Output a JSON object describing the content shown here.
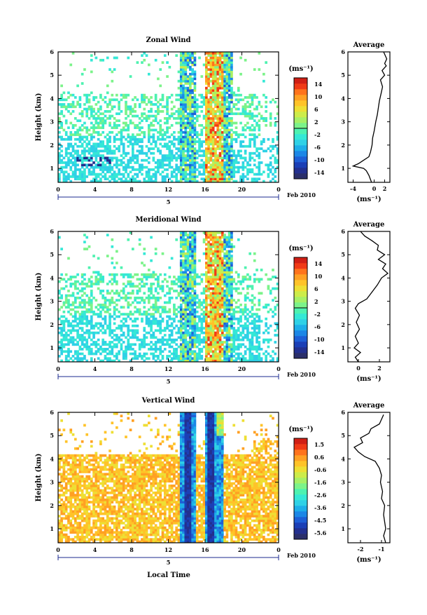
{
  "page": {
    "x_axis_title": "Local Time",
    "date_label": "Feb 2010",
    "day_label": "5",
    "average_title": "Average",
    "y_axis_title": "Height (km)",
    "cbar_unit": "(ms⁻¹)",
    "avg_unit": "(ms⁻¹)"
  },
  "colors": {
    "jet": [
      "#2b2f6a",
      "#23308f",
      "#1b3fb6",
      "#1e5fd6",
      "#1c87e6",
      "#1eaee9",
      "#2fd1e6",
      "#35e8d6",
      "#4ef2b0",
      "#7cf38a",
      "#a7f066",
      "#cdec4a",
      "#eedf34",
      "#ffc329",
      "#ffa023",
      "#ff731c",
      "#f03a16",
      "#d01f15"
    ]
  },
  "chart_data": [
    {
      "type": "heatmap",
      "title": "Zonal Wind",
      "ylabel": "Height (km)",
      "xlabel": "",
      "x_ticks": [
        "0",
        "4",
        "8",
        "12",
        "16",
        "20",
        "0"
      ],
      "x_range": [
        0,
        24
      ],
      "y_ticks": [
        "1",
        "2",
        "3",
        "4",
        "5",
        "6"
      ],
      "y_range": [
        0.4,
        6
      ],
      "colorbar": {
        "label": "(ms⁻¹)",
        "min": -16,
        "max": 16,
        "ticks": [
          "14",
          "10",
          "6",
          "2",
          "-2",
          "-6",
          "-10",
          "-14"
        ]
      },
      "date": "Feb 2010",
      "day": "5",
      "profile": {
        "title": "Average",
        "xlabel": "(ms⁻¹)",
        "x_ticks": [
          "-4",
          "0",
          "2"
        ],
        "x_range": [
          -5,
          3
        ],
        "heights": [
          0.4,
          0.7,
          0.9,
          1.0,
          1.1,
          1.2,
          1.35,
          1.5,
          1.7,
          2.0,
          2.3,
          2.6,
          3.0,
          3.3,
          3.6,
          3.9,
          4.2,
          4.5,
          4.8,
          5.0,
          5.2,
          5.4,
          5.5,
          5.7,
          6.0
        ],
        "values": [
          -0.5,
          -1.0,
          -1.5,
          -2.0,
          -4.0,
          -3.0,
          -2.0,
          -1.0,
          -0.7,
          -0.4,
          -0.3,
          0.0,
          0.3,
          0.6,
          0.8,
          1.0,
          1.3,
          1.6,
          1.2,
          2.0,
          1.5,
          2.3,
          2.0,
          2.4,
          1.8
        ]
      }
    },
    {
      "type": "heatmap",
      "title": "Meridional Wind",
      "ylabel": "Height (km)",
      "xlabel": "",
      "x_ticks": [
        "0",
        "4",
        "8",
        "12",
        "16",
        "20",
        "0"
      ],
      "x_range": [
        0,
        24
      ],
      "y_ticks": [
        "1",
        "2",
        "3",
        "4",
        "5",
        "6"
      ],
      "y_range": [
        0.4,
        6
      ],
      "colorbar": {
        "label": "(ms⁻¹)",
        "min": -16,
        "max": 16,
        "ticks": [
          "14",
          "10",
          "6",
          "2",
          "-2",
          "-6",
          "-10",
          "-14"
        ]
      },
      "date": "Feb 2010",
      "day": "5",
      "profile": {
        "title": "Average",
        "xlabel": "(ms⁻¹)",
        "x_ticks": [
          "0",
          "2"
        ],
        "x_range": [
          -1,
          3
        ],
        "heights": [
          0.4,
          0.6,
          0.8,
          1.0,
          1.2,
          1.5,
          1.8,
          2.1,
          2.4,
          2.7,
          2.9,
          3.1,
          3.4,
          3.7,
          4.0,
          4.2,
          4.4,
          4.6,
          4.8,
          5.0,
          5.2,
          5.4,
          5.6,
          5.8,
          6.0
        ],
        "values": [
          0.0,
          -0.3,
          0.2,
          -0.4,
          0.0,
          -0.3,
          0.1,
          -0.2,
          0.1,
          -0.3,
          0.0,
          0.8,
          1.3,
          1.8,
          2.2,
          2.8,
          2.3,
          2.6,
          1.9,
          2.5,
          1.8,
          1.9,
          1.3,
          0.6,
          0.2
        ]
      }
    },
    {
      "type": "heatmap",
      "title": "Vertical Wind",
      "ylabel": "Height (km)",
      "xlabel": "Local Time",
      "x_ticks": [
        "0",
        "4",
        "8",
        "12",
        "16",
        "20",
        "0"
      ],
      "x_range": [
        0,
        24
      ],
      "y_ticks": [
        "1",
        "2",
        "3",
        "4",
        "5",
        "6"
      ],
      "y_range": [
        0.4,
        6
      ],
      "colorbar": {
        "label": "(ms⁻¹)",
        "min": -6,
        "max": 2,
        "ticks": [
          "1.5",
          "0.6",
          "-0.6",
          "-1.6",
          "-2.6",
          "-3.6",
          "-4.5",
          "-5.6"
        ]
      },
      "date": "Feb 2010",
      "day": "5",
      "profile": {
        "title": "Average",
        "xlabel": "(ms⁻¹)",
        "x_ticks": [
          "-2",
          "-1"
        ],
        "x_range": [
          -2.6,
          -0.6
        ],
        "heights": [
          0.4,
          0.7,
          1.0,
          1.3,
          1.6,
          2.0,
          2.3,
          2.6,
          3.0,
          3.3,
          3.6,
          3.9,
          4.1,
          4.3,
          4.5,
          4.7,
          4.9,
          5.1,
          5.3,
          5.5,
          5.7,
          5.9
        ],
        "values": [
          -0.8,
          -0.9,
          -0.8,
          -0.85,
          -0.9,
          -0.85,
          -1.0,
          -0.95,
          -1.05,
          -1.0,
          -1.1,
          -1.3,
          -1.8,
          -2.1,
          -2.3,
          -1.9,
          -2.0,
          -1.6,
          -1.5,
          -1.1,
          -1.0,
          -0.9
        ]
      }
    }
  ]
}
